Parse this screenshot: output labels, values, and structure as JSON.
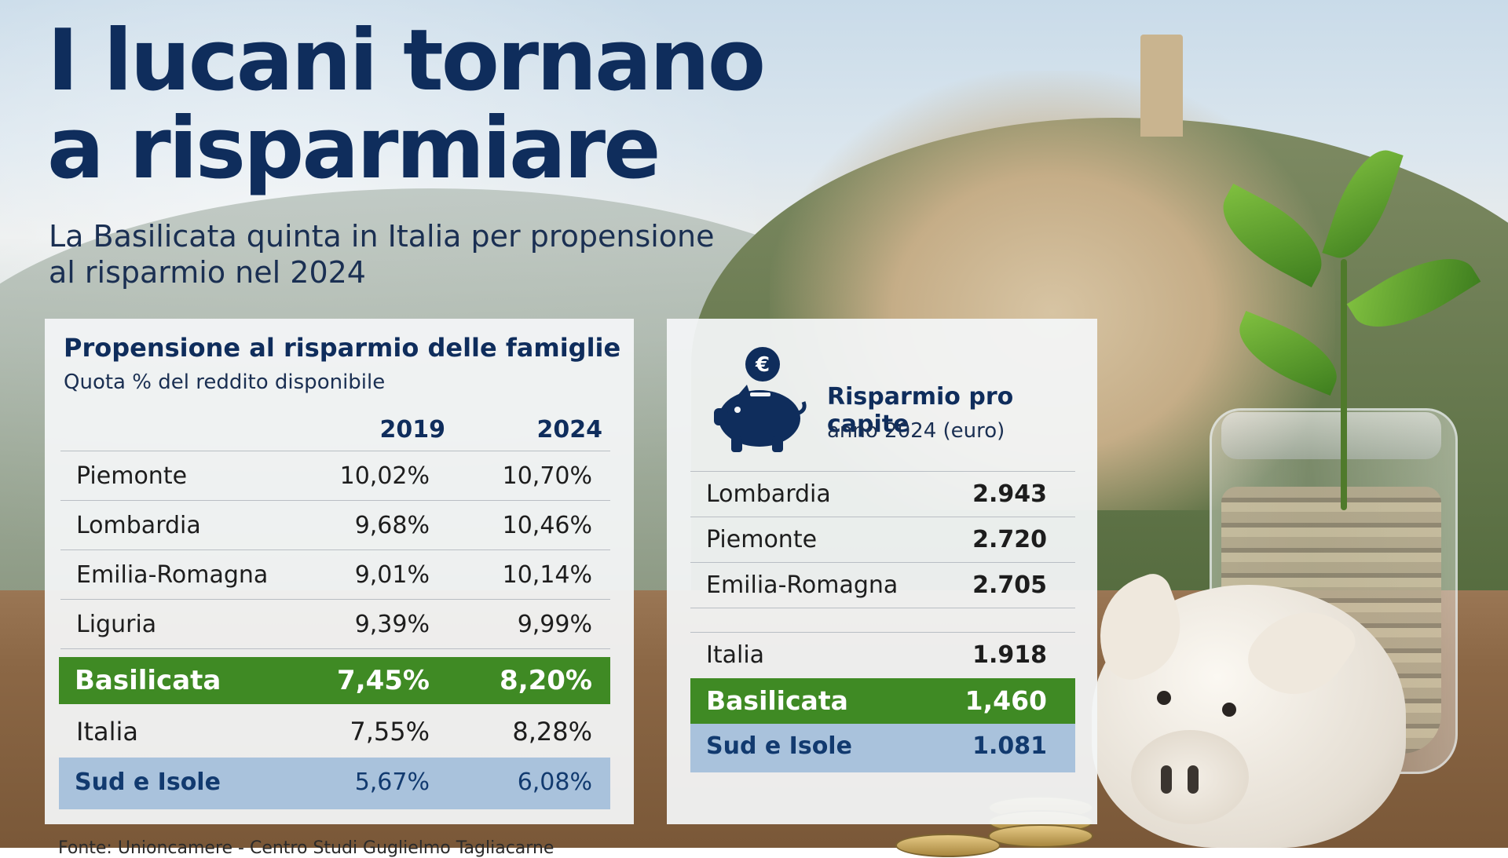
{
  "title_line1": "I lucani tornano",
  "title_line2": "a risparmiare",
  "subtitle_line1": "La Basilicata quinta in Italia per propensione",
  "subtitle_line2": "al risparmio nel 2024",
  "left_table": {
    "title": "Propensione al risparmio delle famiglie",
    "note": "Quota % del reddito disponibile",
    "col1": "2019",
    "col2": "2024",
    "rows": [
      {
        "region": "Piemonte",
        "y2019": "10,02%",
        "y2024": "10,70%"
      },
      {
        "region": "Lombardia",
        "y2019": "9,68%",
        "y2024": "10,46%"
      },
      {
        "region": "Emilia-Romagna",
        "y2019": "9,01%",
        "y2024": "10,14%"
      },
      {
        "region": "Liguria",
        "y2019": "9,39%",
        "y2024": "9,99%"
      },
      {
        "region": "Basilicata",
        "y2019": "7,45%",
        "y2024": "8,20%"
      },
      {
        "region": "Italia",
        "y2019": "7,55%",
        "y2024": "8,28%"
      },
      {
        "region": "Sud e Isole",
        "y2019": "5,67%",
        "y2024": "6,08%"
      }
    ]
  },
  "right_table": {
    "icon": "piggy-bank-euro-icon",
    "title": "Risparmio pro capite",
    "note": "anno 2024 (euro)",
    "rows": [
      {
        "region": "Lombardia",
        "value": "2.943"
      },
      {
        "region": "Piemonte",
        "value": "2.720"
      },
      {
        "region": "Emilia-Romagna",
        "value": "2.705"
      },
      {
        "region": "Italia",
        "value": "1.918"
      },
      {
        "region": "Basilicata",
        "value": "1,460"
      },
      {
        "region": "Sud e Isole",
        "value": "1.081"
      }
    ]
  },
  "colors": {
    "title": "#0f2d5c",
    "highlight_green": "#3f8a24",
    "highlight_blue": "#a9c2dc"
  },
  "source": "Fonte: Unioncamere - Centro Studi Guglielmo Tagliacarne"
}
